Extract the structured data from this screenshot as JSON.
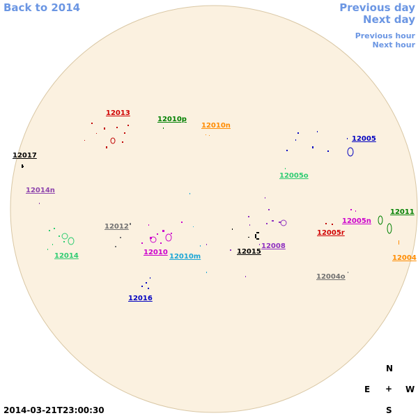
{
  "nav": {
    "back": "Back to 2014",
    "previous_day": "Previous day",
    "next_day": "Next day",
    "previous_hour": "Previous hour",
    "next_hour": "Next hour"
  },
  "regions": [
    "12013",
    "12010p",
    "12010n",
    "12017",
    "12005",
    "12005o",
    "12014n",
    "12011",
    "12012",
    "12005n",
    "12005r",
    "12014",
    "12010",
    "12015",
    "12008",
    "12010m",
    "12004",
    "12004o",
    "12016"
  ],
  "timestamp": "2014-03-21T23:00:30",
  "compass": {
    "north": "N",
    "east": "E",
    "center": "+",
    "west": "W",
    "south": "S"
  }
}
